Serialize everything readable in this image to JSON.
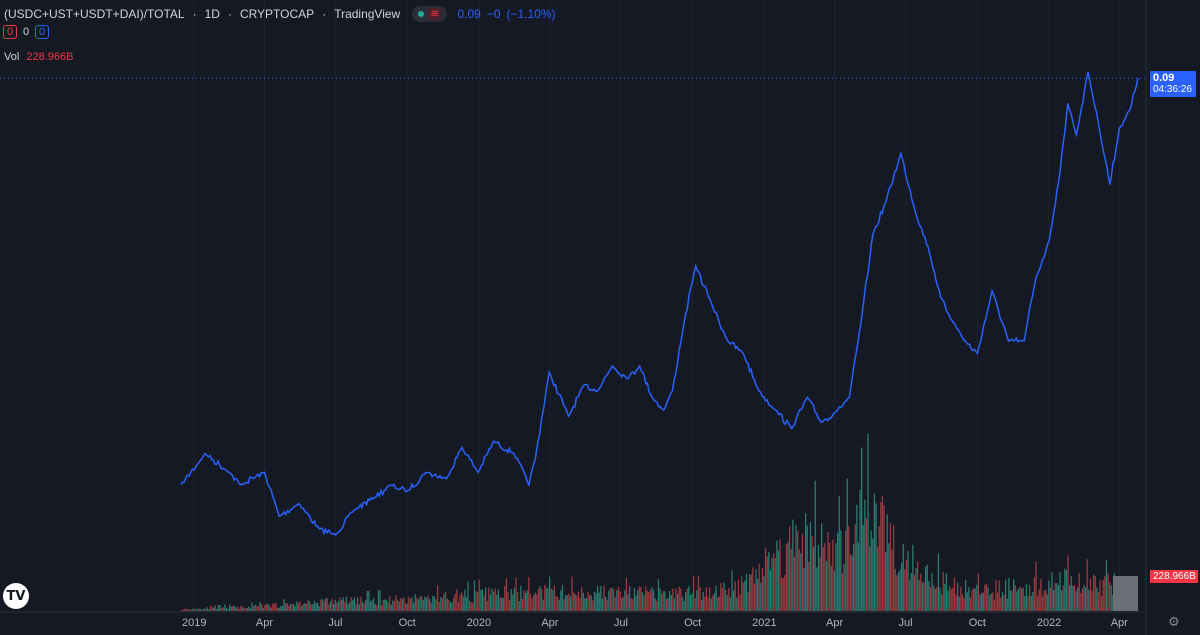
{
  "header": {
    "symbol": "(USDC+UST+USDT+DAI)/TOTAL",
    "interval": "1D",
    "exchange": "CRYPTOCAP",
    "source": "TradingView",
    "separator": "·",
    "market_status_icon": "green-dot-icon",
    "wave_icon": "wave-icon",
    "wave_glyph": "≋",
    "last_value": "0.09",
    "change": "−0",
    "change_pct": "(−1.10%)"
  },
  "indicator_boxes": {
    "first": "0",
    "second": "0",
    "third": "0"
  },
  "volume": {
    "label": "Vol",
    "value": "228.966B"
  },
  "price_badge": {
    "value": "0.09",
    "countdown": "04:36:26"
  },
  "volume_badge": "228.966B",
  "logo_text": "TV",
  "settings_icon": "gear-icon",
  "colors": {
    "background": "#151924",
    "line": "#2962ff",
    "grid": "#1f2330",
    "vol_up": "#2d7a70",
    "vol_down": "#9b3a3e"
  },
  "chart_data": {
    "type": "line",
    "x_tick_labels": [
      "2019",
      "Apr",
      "Jul",
      "Oct",
      "2020",
      "Apr",
      "Jul",
      "Oct",
      "2021",
      "Apr",
      "Jul",
      "Oct",
      "2022",
      "Apr"
    ],
    "x_ticks": [
      "2019-01-01",
      "2019-04-01",
      "2019-07-01",
      "2019-10-01",
      "2020-01-01",
      "2020-04-01",
      "2020-07-01",
      "2020-10-01",
      "2021-01-01",
      "2021-04-01",
      "2021-07-01",
      "2021-10-01",
      "2022-01-01",
      "2022-04-01"
    ],
    "x_range": [
      "2018-12-15",
      "2022-04-25"
    ],
    "y_range": [
      0.012,
      0.09
    ],
    "series": [
      {
        "x": [
          "2018-12-15",
          "2019-01-15",
          "2019-02-15",
          "2019-03-01",
          "2019-04-01",
          "2019-04-20",
          "2019-05-15",
          "2019-06-10",
          "2019-07-01",
          "2019-07-25",
          "2019-08-20",
          "2019-09-10",
          "2019-10-01",
          "2019-10-25",
          "2019-11-20",
          "2019-12-10",
          "2019-12-31",
          "2020-01-20",
          "2020-02-15",
          "2020-03-05",
          "2020-03-13",
          "2020-03-31",
          "2020-04-25",
          "2020-05-15",
          "2020-06-01",
          "2020-06-20",
          "2020-07-10",
          "2020-07-25",
          "2020-08-10",
          "2020-08-25",
          "2020-09-05",
          "2020-09-20",
          "2020-10-05",
          "2020-10-25",
          "2020-11-15",
          "2020-12-05",
          "2020-12-25",
          "2021-01-15",
          "2021-02-05",
          "2021-02-25",
          "2021-03-15",
          "2021-04-05",
          "2021-04-20",
          "2021-05-05",
          "2021-05-20",
          "2021-06-05",
          "2021-06-25",
          "2021-07-15",
          "2021-07-30",
          "2021-08-15",
          "2021-08-31",
          "2021-09-15",
          "2021-10-01",
          "2021-10-20",
          "2021-11-10",
          "2021-11-30",
          "2021-12-15",
          "2022-01-01",
          "2022-01-15",
          "2022-01-25",
          "2022-02-05",
          "2022-02-20",
          "2022-03-05",
          "2022-03-20",
          "2022-04-01",
          "2022-04-15",
          "2022-04-25"
        ],
        "y": [
          0.024,
          0.029,
          0.026,
          0.024,
          0.026,
          0.019,
          0.021,
          0.017,
          0.016,
          0.02,
          0.022,
          0.024,
          0.023,
          0.026,
          0.025,
          0.03,
          0.026,
          0.031,
          0.029,
          0.024,
          0.028,
          0.042,
          0.035,
          0.04,
          0.039,
          0.043,
          0.041,
          0.043,
          0.038,
          0.036,
          0.039,
          0.05,
          0.059,
          0.053,
          0.047,
          0.045,
          0.039,
          0.036,
          0.033,
          0.038,
          0.034,
          0.036,
          0.038,
          0.05,
          0.064,
          0.069,
          0.077,
          0.067,
          0.062,
          0.054,
          0.05,
          0.047,
          0.045,
          0.055,
          0.047,
          0.047,
          0.057,
          0.063,
          0.074,
          0.085,
          0.08,
          0.09,
          0.082,
          0.072,
          0.081,
          0.084,
          0.089
        ]
      }
    ],
    "volume_series": {
      "x": [
        "2018-12-15",
        "2019-04-01",
        "2019-07-01",
        "2019-10-01",
        "2020-01-01",
        "2020-03-13",
        "2020-06-01",
        "2020-09-01",
        "2020-11-20",
        "2021-01-10",
        "2021-02-20",
        "2021-04-01",
        "2021-05-19",
        "2021-06-20",
        "2021-08-15",
        "2021-10-01",
        "2021-12-01",
        "2022-01-20",
        "2022-03-01",
        "2022-04-25"
      ],
      "y": [
        5,
        15,
        30,
        35,
        50,
        55,
        55,
        50,
        65,
        150,
        230,
        170,
        300,
        190,
        85,
        60,
        75,
        90,
        80,
        85
      ]
    },
    "grid": true
  }
}
